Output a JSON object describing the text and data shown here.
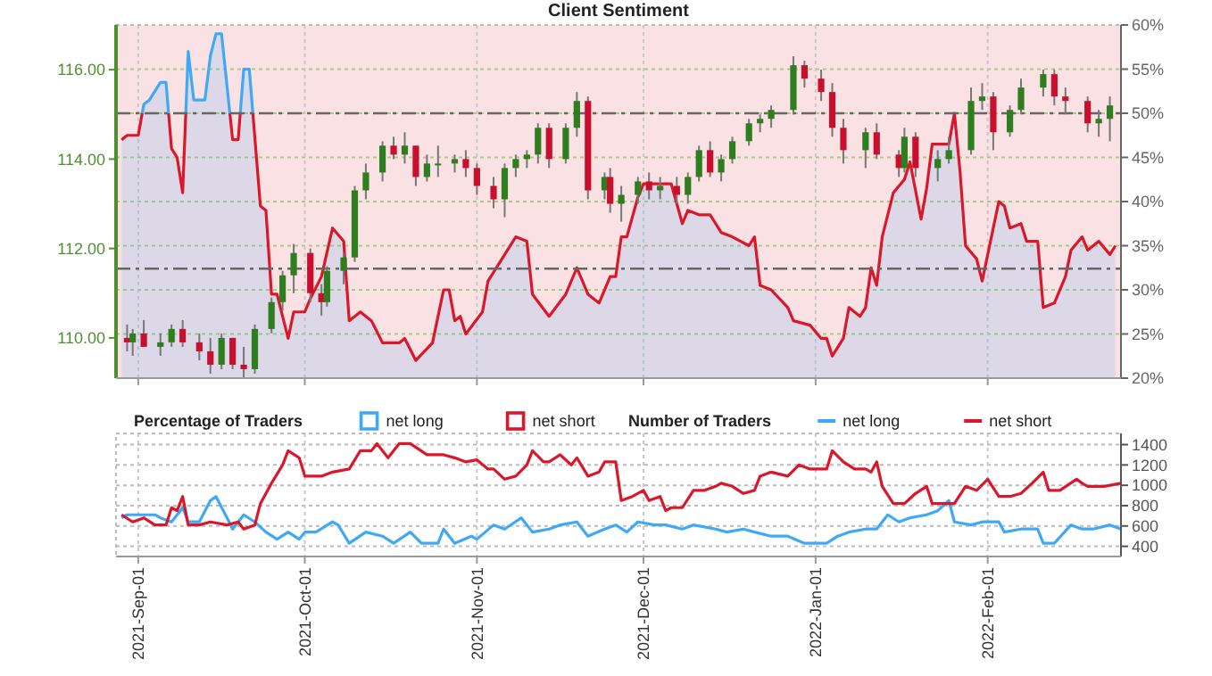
{
  "chart_data": [
    {
      "type": "candlestick",
      "title": "Client Sentiment",
      "legend_title": "Percentage of Traders",
      "legend": "bottom",
      "grid": true,
      "tick_labels": "y",
      "xlim": [
        "2021-08-28",
        "2022-02-25"
      ],
      "xticks": [
        "2021-09-01",
        "2021-10-01",
        "2021-11-01",
        "2021-12-01",
        "2022-01-01",
        "2022-02-01"
      ],
      "ylim": [
        109.1,
        117.0
      ],
      "yticks": [
        {
          "value": 110,
          "label": "110.00"
        },
        {
          "value": 112,
          "label": "112.00"
        },
        {
          "value": 114,
          "label": "114.00"
        },
        {
          "value": 116,
          "label": "116.00"
        }
      ],
      "y2lim": [
        20,
        60
      ],
      "y2ticks": [
        {
          "value": 20,
          "label": "20%"
        },
        {
          "value": 25,
          "label": "25%"
        },
        {
          "value": 30,
          "label": "30%"
        },
        {
          "value": 35,
          "label": "35%"
        },
        {
          "value": 40,
          "label": "40%"
        },
        {
          "value": 45,
          "label": "45%"
        },
        {
          "value": 50,
          "label": "50%"
        },
        {
          "value": 55,
          "label": "55%"
        },
        {
          "value": 60,
          "label": "60%"
        }
      ],
      "bands": [
        {
          "axis": "y2",
          "from": 20,
          "to": 60,
          "label": "net short",
          "color": "#d9182b"
        }
      ],
      "ref_lines": [
        {
          "axis": "y2",
          "value": 50,
          "color": "#666666",
          "line_style": "dashed"
        },
        {
          "axis": "y2",
          "value": 32.4,
          "color": "#666666",
          "line_style": "dashed"
        }
      ],
      "x": [
        "2021-08-30",
        "2021-08-31",
        "2021-09-02",
        "2021-09-05",
        "2021-09-07",
        "2021-09-09",
        "2021-09-12",
        "2021-09-14",
        "2021-09-16",
        "2021-09-18",
        "2021-09-20",
        "2021-09-22",
        "2021-09-25",
        "2021-09-27",
        "2021-09-29",
        "2021-10-02",
        "2021-10-04",
        "2021-10-05",
        "2021-10-08",
        "2021-10-10",
        "2021-10-12",
        "2021-10-15",
        "2021-10-17",
        "2021-10-19",
        "2021-10-21",
        "2021-10-23",
        "2021-10-25",
        "2021-10-28",
        "2021-10-30",
        "2021-11-01",
        "2021-11-04",
        "2021-11-06",
        "2021-11-08",
        "2021-11-10",
        "2021-11-12",
        "2021-11-14",
        "2021-11-17",
        "2021-11-19",
        "2021-11-21",
        "2021-11-24",
        "2021-11-25",
        "2021-11-27",
        "2021-11-30",
        "2021-12-02",
        "2021-12-04",
        "2021-12-07",
        "2021-12-09",
        "2021-12-11",
        "2021-12-13",
        "2021-12-15",
        "2021-12-17",
        "2021-12-20",
        "2021-12-22",
        "2021-12-24",
        "2021-12-28",
        "2021-12-30",
        "2022-01-02",
        "2022-01-04",
        "2022-01-06",
        "2022-01-10",
        "2022-01-12",
        "2022-01-16",
        "2022-01-17",
        "2022-01-19",
        "2022-01-23",
        "2022-01-25",
        "2022-01-29",
        "2022-01-31",
        "2022-02-02",
        "2022-02-05",
        "2022-02-07",
        "2022-02-11",
        "2022-02-13",
        "2022-02-15",
        "2022-02-19",
        "2022-02-21",
        "2022-02-23"
      ],
      "ohlc": [
        [
          110.0,
          110.3,
          109.7,
          109.9
        ],
        [
          109.9,
          110.2,
          109.6,
          110.1
        ],
        [
          110.1,
          110.4,
          109.8,
          109.8
        ],
        [
          109.8,
          110.1,
          109.6,
          109.9
        ],
        [
          109.9,
          110.3,
          109.8,
          110.2
        ],
        [
          110.2,
          110.4,
          109.8,
          109.9
        ],
        [
          109.9,
          110.1,
          109.5,
          109.7
        ],
        [
          109.7,
          110.0,
          109.2,
          109.4
        ],
        [
          109.4,
          110.1,
          109.3,
          110.0
        ],
        [
          110.0,
          110.0,
          109.3,
          109.4
        ],
        [
          109.4,
          109.8,
          109.1,
          109.3
        ],
        [
          109.3,
          110.3,
          109.2,
          110.2
        ],
        [
          110.2,
          110.9,
          110.1,
          110.8
        ],
        [
          110.8,
          111.5,
          110.6,
          111.4
        ],
        [
          111.4,
          112.1,
          111.0,
          111.9
        ],
        [
          111.9,
          112.0,
          110.8,
          111.0
        ],
        [
          111.0,
          111.2,
          110.5,
          110.8
        ],
        [
          110.8,
          111.6,
          110.7,
          111.5
        ],
        [
          111.5,
          111.9,
          111.2,
          111.8
        ],
        [
          111.8,
          113.4,
          111.7,
          113.3
        ],
        [
          113.3,
          113.9,
          113.1,
          113.7
        ],
        [
          113.7,
          114.4,
          113.5,
          114.3
        ],
        [
          114.3,
          114.5,
          114.0,
          114.1
        ],
        [
          114.1,
          114.6,
          113.9,
          114.3
        ],
        [
          114.3,
          114.3,
          113.4,
          113.6
        ],
        [
          113.6,
          114.1,
          113.5,
          113.9
        ],
        [
          113.9,
          114.3,
          113.6,
          113.9
        ],
        [
          113.9,
          114.1,
          113.7,
          114.0
        ],
        [
          114.0,
          114.2,
          113.6,
          113.8
        ],
        [
          113.8,
          113.9,
          113.2,
          113.4
        ],
        [
          113.4,
          113.6,
          112.9,
          113.1
        ],
        [
          113.1,
          113.9,
          112.7,
          113.8
        ],
        [
          113.8,
          114.1,
          113.6,
          114.0
        ],
        [
          114.0,
          114.2,
          113.8,
          114.1
        ],
        [
          114.1,
          114.8,
          113.9,
          114.7
        ],
        [
          114.7,
          114.8,
          113.8,
          114.0
        ],
        [
          114.0,
          114.8,
          113.9,
          114.7
        ],
        [
          114.7,
          115.5,
          114.5,
          115.3
        ],
        [
          115.3,
          115.4,
          113.1,
          113.3
        ],
        [
          113.3,
          113.7,
          113.1,
          113.6
        ],
        [
          113.6,
          113.8,
          112.8,
          113.0
        ],
        [
          113.0,
          113.4,
          112.6,
          113.2
        ],
        [
          113.2,
          113.6,
          113.0,
          113.5
        ],
        [
          113.5,
          113.7,
          113.1,
          113.3
        ],
        [
          113.3,
          113.6,
          113.1,
          113.4
        ],
        [
          113.4,
          113.6,
          113.0,
          113.2
        ],
        [
          113.2,
          113.7,
          113.0,
          113.6
        ],
        [
          113.6,
          114.3,
          113.5,
          114.2
        ],
        [
          114.2,
          114.4,
          113.6,
          113.7
        ],
        [
          113.7,
          114.1,
          113.5,
          114.0
        ],
        [
          114.0,
          114.5,
          113.9,
          114.4
        ],
        [
          114.4,
          114.9,
          114.3,
          114.8
        ],
        [
          114.8,
          115.0,
          114.6,
          114.9
        ],
        [
          114.9,
          115.2,
          114.7,
          115.1
        ],
        [
          115.1,
          116.3,
          115.0,
          116.1
        ],
        [
          116.1,
          116.2,
          115.6,
          115.8
        ],
        [
          115.8,
          116.0,
          115.3,
          115.5
        ],
        [
          115.5,
          115.7,
          114.5,
          114.7
        ],
        [
          114.7,
          114.9,
          113.9,
          114.2
        ],
        [
          114.2,
          114.7,
          113.8,
          114.6
        ],
        [
          114.6,
          114.8,
          114.0,
          114.1
        ],
        [
          114.1,
          114.2,
          113.6,
          113.8
        ],
        [
          113.8,
          114.7,
          113.7,
          114.5
        ],
        [
          114.5,
          114.6,
          113.6,
          113.8
        ],
        [
          113.8,
          114.2,
          113.5,
          114.0
        ],
        [
          114.0,
          114.5,
          113.9,
          114.2
        ],
        [
          114.2,
          115.6,
          114.1,
          115.3
        ],
        [
          115.3,
          115.7,
          115.1,
          115.4
        ],
        [
          115.4,
          115.5,
          114.2,
          114.6
        ],
        [
          114.6,
          115.2,
          114.5,
          115.1
        ],
        [
          115.1,
          115.8,
          115.0,
          115.6
        ],
        [
          115.6,
          116.0,
          115.4,
          115.9
        ],
        [
          115.9,
          116.0,
          115.2,
          115.4
        ],
        [
          115.4,
          115.6,
          115.0,
          115.3
        ],
        [
          115.3,
          115.4,
          114.6,
          114.8
        ],
        [
          114.8,
          115.1,
          114.5,
          114.9
        ],
        [
          114.9,
          115.4,
          114.4,
          115.2
        ]
      ],
      "series": [
        {
          "name": "net long",
          "type": "area",
          "axis": "y2",
          "color": "#3fa9f5",
          "x": [
            "2021-08-29",
            "2021-08-30",
            "2021-09-01",
            "2021-09-02",
            "2021-09-03",
            "2021-09-05",
            "2021-09-06",
            "2021-09-07",
            "2021-09-08",
            "2021-09-09",
            "2021-09-10",
            "2021-09-11",
            "2021-09-13",
            "2021-09-14",
            "2021-09-15",
            "2021-09-16",
            "2021-09-18",
            "2021-09-19",
            "2021-09-20",
            "2021-09-21",
            "2021-09-23",
            "2021-09-24",
            "2021-09-25",
            "2021-09-26",
            "2021-09-28",
            "2021-09-29",
            "2021-10-01",
            "2021-10-02",
            "2021-10-04",
            "2021-10-06",
            "2021-10-08",
            "2021-10-09",
            "2021-10-11",
            "2021-10-13",
            "2021-10-15",
            "2021-10-18",
            "2021-10-19",
            "2021-10-21",
            "2021-10-24",
            "2021-10-26",
            "2021-10-27",
            "2021-10-28",
            "2021-10-29",
            "2021-10-30",
            "2021-11-02",
            "2021-11-03",
            "2021-11-05",
            "2021-11-08",
            "2021-11-10",
            "2021-11-11",
            "2021-11-14",
            "2021-11-17",
            "2021-11-19",
            "2021-11-21",
            "2021-11-23",
            "2021-11-25",
            "2021-11-26",
            "2021-11-27",
            "2021-11-28",
            "2021-11-30",
            "2021-12-01",
            "2021-12-04",
            "2021-12-06",
            "2021-12-08",
            "2021-12-09",
            "2021-12-11",
            "2021-12-13",
            "2021-12-15",
            "2021-12-17",
            "2021-12-20",
            "2021-12-21",
            "2021-12-22",
            "2021-12-24",
            "2021-12-27",
            "2021-12-28",
            "2021-12-31",
            "2022-01-02",
            "2022-01-03",
            "2022-01-04",
            "2022-01-06",
            "2022-01-07",
            "2022-01-09",
            "2022-01-10",
            "2022-01-11",
            "2022-01-12",
            "2022-01-13",
            "2022-01-15",
            "2022-01-17",
            "2022-01-18",
            "2022-01-20",
            "2022-01-21",
            "2022-01-22",
            "2022-01-25",
            "2022-01-26",
            "2022-01-27",
            "2022-01-28",
            "2022-01-30",
            "2022-01-31",
            "2022-02-03",
            "2022-02-04",
            "2022-02-05",
            "2022-02-07",
            "2022-02-08",
            "2022-02-10",
            "2022-02-11",
            "2022-02-13",
            "2022-02-15",
            "2022-02-16",
            "2022-02-18",
            "2022-02-19",
            "2022-02-21",
            "2022-02-23",
            "2022-02-24"
          ],
          "values": [
            47,
            47.5,
            47.5,
            51,
            51.5,
            53.5,
            53.5,
            46,
            45,
            41,
            57,
            51.5,
            51.5,
            56.5,
            59,
            59,
            47,
            47,
            55,
            55,
            39.5,
            39,
            29.5,
            29.5,
            24.5,
            27.5,
            27.5,
            29,
            31.5,
            37,
            35.5,
            26.5,
            27.5,
            26.5,
            24,
            24,
            24.5,
            22,
            24,
            30,
            30,
            26.5,
            27,
            25,
            27.5,
            31,
            33,
            36,
            35.5,
            29.5,
            27,
            29.5,
            32.5,
            29.5,
            28.5,
            31.5,
            31.5,
            36,
            36,
            40.5,
            42,
            42,
            42,
            37.5,
            39,
            38.5,
            38.5,
            36.5,
            36,
            35,
            36,
            30.5,
            30,
            28,
            26.5,
            26,
            24.5,
            24.5,
            22.5,
            24.5,
            28,
            27,
            28,
            32.5,
            30.5,
            36,
            41,
            42.5,
            44.5,
            38,
            41.5,
            46.5,
            46.5,
            50,
            43.5,
            35,
            33.5,
            31,
            40,
            39.5,
            37,
            37.5,
            35.5,
            35.5,
            28,
            28.5,
            31.5,
            34.5,
            36,
            34.5,
            35.5,
            34,
            35
          ]
        }
      ]
    },
    {
      "type": "line",
      "legend_title": "Number of Traders",
      "legend": "top",
      "grid": true,
      "xlim": [
        "2021-08-28",
        "2022-02-25"
      ],
      "xticks": [
        {
          "value": "2021-09-01",
          "label": "2021-Sep-01"
        },
        {
          "value": "2021-10-01",
          "label": "2021-Oct-01"
        },
        {
          "value": "2021-11-01",
          "label": "2021-Nov-01"
        },
        {
          "value": "2021-12-01",
          "label": "2021-Dec-01"
        },
        {
          "value": "2022-01-01",
          "label": "2022-Jan-01"
        },
        {
          "value": "2022-02-01",
          "label": "2022-Feb-01"
        }
      ],
      "ylim": [
        300,
        1510
      ],
      "yticks": [
        400,
        600,
        800,
        1000,
        1200,
        1400
      ],
      "series": [
        {
          "name": "net long",
          "color": "#3fa9f5",
          "x": [
            "2021-08-29",
            "2021-08-30",
            "2021-09-01",
            "2021-09-04",
            "2021-09-05",
            "2021-09-07",
            "2021-09-09",
            "2021-09-10",
            "2021-09-12",
            "2021-09-14",
            "2021-09-15",
            "2021-09-17",
            "2021-09-18",
            "2021-09-20",
            "2021-09-22",
            "2021-09-24",
            "2021-09-26",
            "2021-09-28",
            "2021-09-30",
            "2021-10-01",
            "2021-10-03",
            "2021-10-06",
            "2021-10-07",
            "2021-10-09",
            "2021-10-12",
            "2021-10-15",
            "2021-10-17",
            "2021-10-20",
            "2021-10-22",
            "2021-10-25",
            "2021-10-26",
            "2021-10-28",
            "2021-10-31",
            "2021-11-01",
            "2021-11-04",
            "2021-11-06",
            "2021-11-09",
            "2021-11-11",
            "2021-11-14",
            "2021-11-16",
            "2021-11-19",
            "2021-11-21",
            "2021-11-24",
            "2021-11-26",
            "2021-11-28",
            "2021-11-30",
            "2021-12-03",
            "2021-12-05",
            "2021-12-08",
            "2021-12-10",
            "2021-12-14",
            "2021-12-16",
            "2021-12-19",
            "2021-12-21",
            "2021-12-24",
            "2021-12-27",
            "2021-12-30",
            "2022-01-03",
            "2022-01-05",
            "2022-01-07",
            "2022-01-10",
            "2022-01-12",
            "2022-01-14",
            "2022-01-16",
            "2022-01-18",
            "2022-01-21",
            "2022-01-23",
            "2022-01-25",
            "2022-01-26",
            "2022-01-29",
            "2022-01-31",
            "2022-02-03",
            "2022-02-04",
            "2022-02-07",
            "2022-02-10",
            "2022-02-11",
            "2022-02-13",
            "2022-02-16",
            "2022-02-18",
            "2022-02-20",
            "2022-02-23",
            "2022-02-25"
          ],
          "values": [
            680,
            710,
            710,
            710,
            680,
            640,
            780,
            640,
            640,
            850,
            890,
            680,
            570,
            710,
            640,
            540,
            470,
            540,
            470,
            540,
            540,
            640,
            610,
            430,
            540,
            500,
            430,
            540,
            430,
            430,
            570,
            430,
            500,
            470,
            610,
            570,
            680,
            540,
            570,
            610,
            640,
            500,
            570,
            610,
            540,
            640,
            610,
            610,
            570,
            610,
            570,
            540,
            570,
            540,
            500,
            500,
            430,
            430,
            500,
            540,
            570,
            570,
            710,
            640,
            680,
            710,
            750,
            850,
            640,
            610,
            640,
            640,
            540,
            570,
            570,
            430,
            430,
            610,
            570,
            570,
            610,
            570
          ]
        },
        {
          "name": "net short",
          "color": "#d9182b",
          "x": [
            "2021-08-29",
            "2021-08-31",
            "2021-09-02",
            "2021-09-04",
            "2021-09-06",
            "2021-09-07",
            "2021-09-08",
            "2021-09-09",
            "2021-09-10",
            "2021-09-12",
            "2021-09-14",
            "2021-09-17",
            "2021-09-19",
            "2021-09-20",
            "2021-09-22",
            "2021-09-23",
            "2021-09-25",
            "2021-09-27",
            "2021-09-28",
            "2021-09-30",
            "2021-10-01",
            "2021-10-04",
            "2021-10-06",
            "2021-10-09",
            "2021-10-11",
            "2021-10-13",
            "2021-10-14",
            "2021-10-16",
            "2021-10-18",
            "2021-10-20",
            "2021-10-23",
            "2021-10-26",
            "2021-10-28",
            "2021-10-30",
            "2021-11-01",
            "2021-11-03",
            "2021-11-04",
            "2021-11-06",
            "2021-11-08",
            "2021-11-10",
            "2021-11-11",
            "2021-11-13",
            "2021-11-14",
            "2021-11-16",
            "2021-11-18",
            "2021-11-19",
            "2021-11-21",
            "2021-11-23",
            "2021-11-24",
            "2021-11-26",
            "2021-11-27",
            "2021-11-29",
            "2021-12-01",
            "2021-12-02",
            "2021-12-04",
            "2021-12-05",
            "2021-12-06",
            "2021-12-08",
            "2021-12-10",
            "2021-12-12",
            "2021-12-14",
            "2021-12-15",
            "2021-12-17",
            "2021-12-19",
            "2021-12-21",
            "2021-12-22",
            "2021-12-24",
            "2021-12-27",
            "2021-12-29",
            "2021-12-31",
            "2022-01-03",
            "2022-01-04",
            "2022-01-06",
            "2022-01-08",
            "2022-01-10",
            "2022-01-11",
            "2022-01-12",
            "2022-01-13",
            "2022-01-15",
            "2022-01-17",
            "2022-01-19",
            "2022-01-21",
            "2022-01-22",
            "2022-01-25",
            "2022-01-26",
            "2022-01-28",
            "2022-01-30",
            "2022-02-01",
            "2022-02-03",
            "2022-02-05",
            "2022-02-07",
            "2022-02-09",
            "2022-02-11",
            "2022-02-12",
            "2022-02-14",
            "2022-02-17",
            "2022-02-18",
            "2022-02-19",
            "2022-02-22",
            "2022-02-25"
          ],
          "values": [
            710,
            640,
            680,
            610,
            610,
            780,
            750,
            890,
            610,
            610,
            640,
            610,
            640,
            570,
            610,
            820,
            1020,
            1200,
            1340,
            1270,
            1090,
            1090,
            1130,
            1160,
            1340,
            1340,
            1410,
            1270,
            1410,
            1410,
            1300,
            1300,
            1270,
            1230,
            1250,
            1160,
            1160,
            1060,
            1090,
            1200,
            1340,
            1230,
            1230,
            1300,
            1200,
            1270,
            1090,
            1130,
            1230,
            1230,
            850,
            890,
            950,
            850,
            890,
            750,
            780,
            780,
            950,
            950,
            990,
            1020,
            990,
            920,
            950,
            1090,
            1130,
            1090,
            1200,
            1160,
            1160,
            1340,
            1230,
            1160,
            1160,
            1130,
            1230,
            990,
            820,
            820,
            920,
            990,
            820,
            820,
            820,
            990,
            950,
            1060,
            890,
            890,
            920,
            1020,
            1130,
            950,
            950,
            1060,
            1020,
            990,
            990,
            1020
          ]
        }
      ]
    }
  ]
}
